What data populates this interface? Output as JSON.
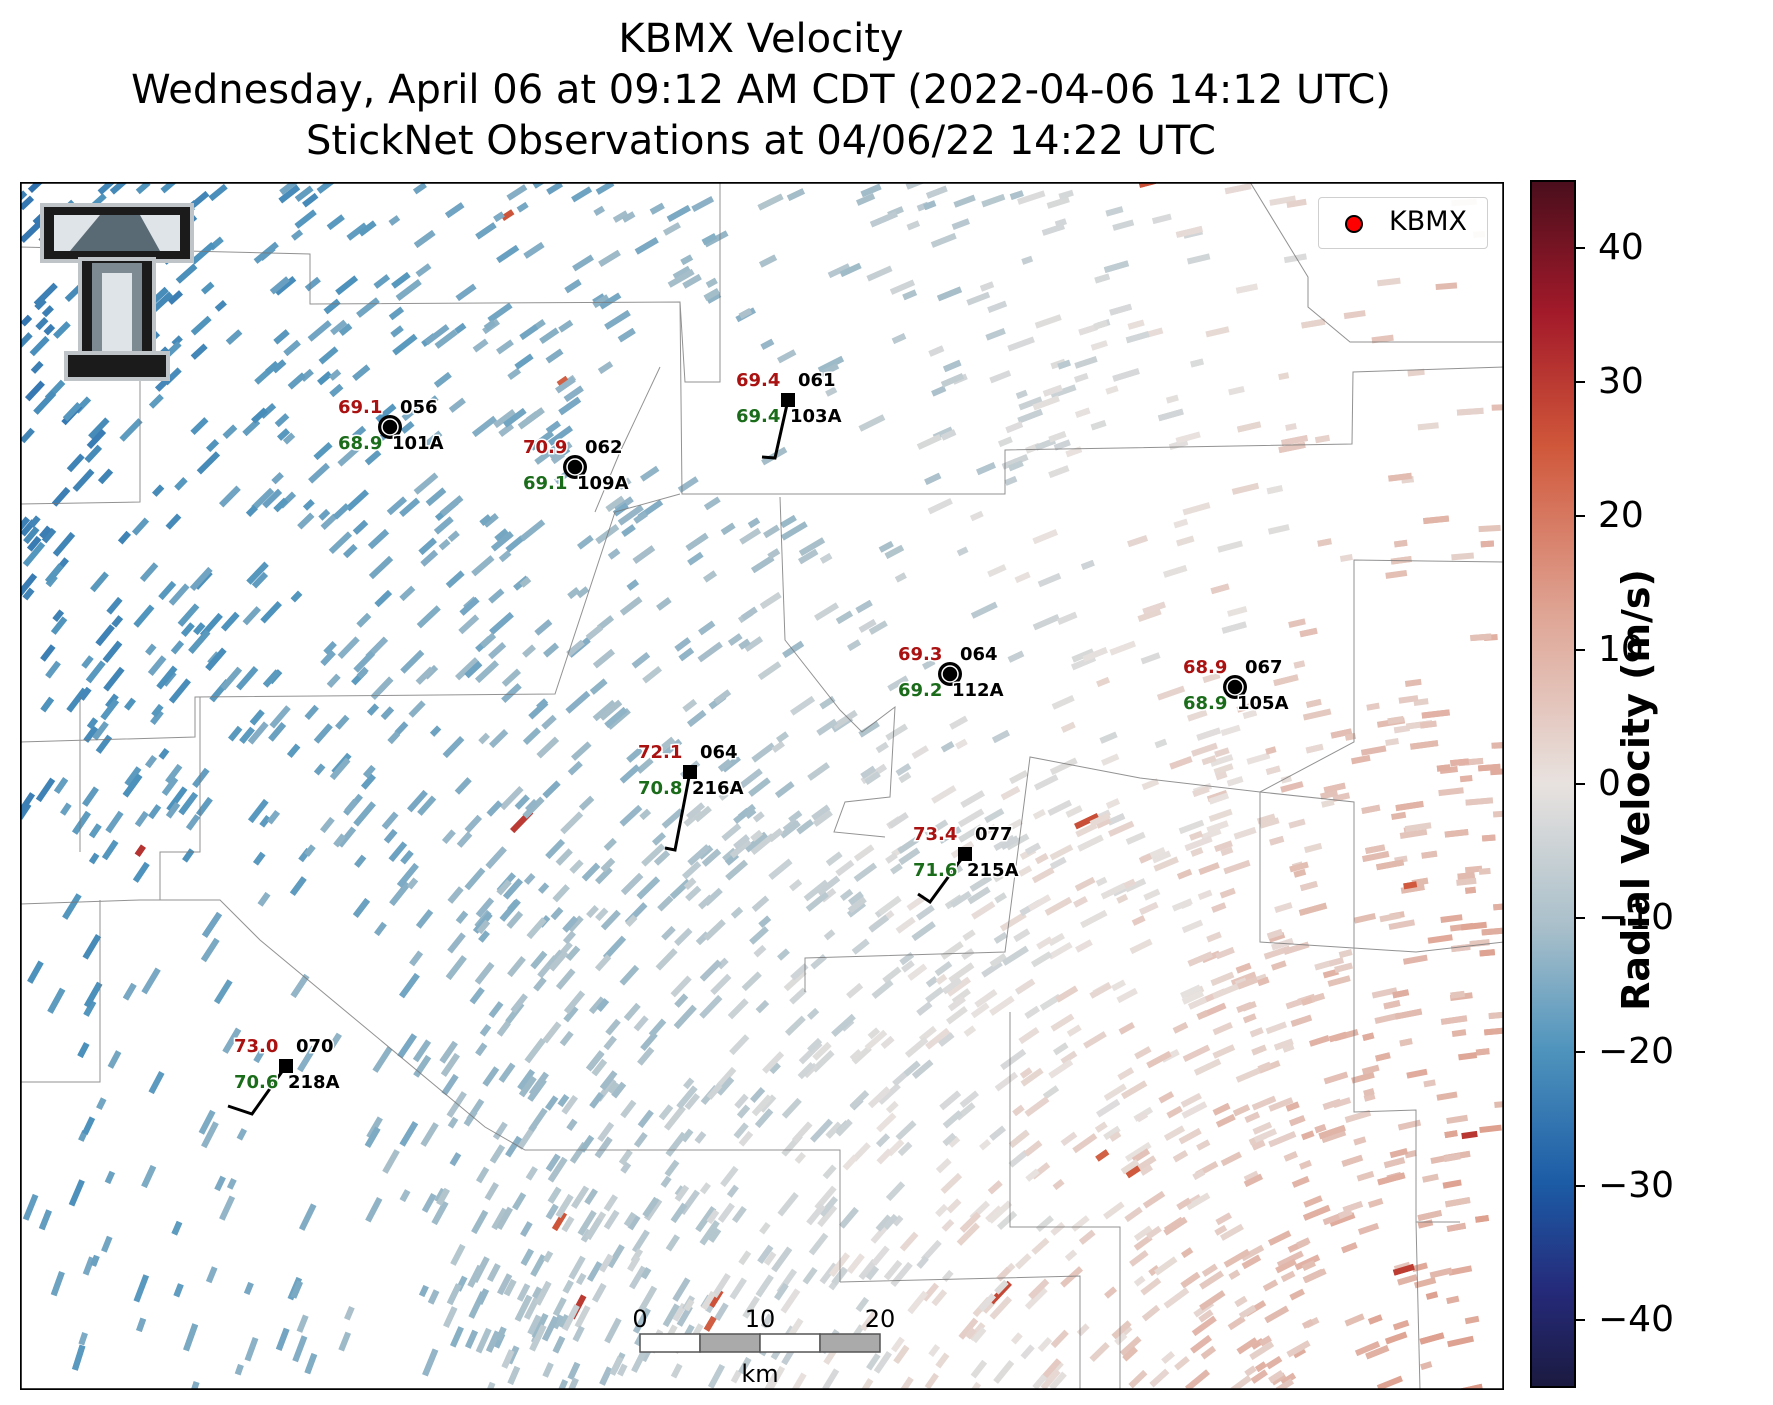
{
  "title": {
    "line1": "KBMX Velocity",
    "line2": "Wednesday, April 06 at 09:12 AM CDT (2022-04-06 14:12 UTC)",
    "line3": "StickNet Observations at 04/06/22 14:22 UTC"
  },
  "legend": {
    "label": "KBMX",
    "marker_color": "#ff0000"
  },
  "colorbar": {
    "label": "Radial Velocity (m/s)",
    "range": [
      -45,
      45
    ],
    "ticks": [
      "40",
      "30",
      "20",
      "10",
      "0",
      "−10",
      "−20",
      "−30",
      "−40"
    ],
    "tick_values": [
      40,
      30,
      20,
      10,
      0,
      -10,
      -20,
      -30,
      -40
    ],
    "colors": [
      "#4a0e1c",
      "#a31a2a",
      "#d0573a",
      "#dfa595",
      "#e8e2df",
      "#a8bfca",
      "#4f94bd",
      "#1c5ca6",
      "#252a7a",
      "#1b1a40"
    ]
  },
  "scale_bar": {
    "labels": [
      "0",
      "10",
      "20"
    ],
    "unit": "km"
  },
  "stations": [
    {
      "id": "056",
      "sub": "101A",
      "temp": "69.1",
      "dew": "68.9",
      "marker": "calm"
    },
    {
      "id": "062",
      "sub": "109A",
      "temp": "70.9",
      "dew": "69.1",
      "marker": "calm"
    },
    {
      "id": "061",
      "sub": "103A",
      "temp": "69.4",
      "dew": "69.4",
      "marker": "barb"
    },
    {
      "id": "064",
      "sub": "112A",
      "temp": "69.3",
      "dew": "69.2",
      "marker": "calm"
    },
    {
      "id": "067",
      "sub": "105A",
      "temp": "68.9",
      "dew": "68.9",
      "marker": "calm"
    },
    {
      "id": "064",
      "sub": "216A",
      "temp": "72.1",
      "dew": "70.8",
      "marker": "barb"
    },
    {
      "id": "077",
      "sub": "215A",
      "temp": "73.4",
      "dew": "71.6",
      "marker": "barb"
    },
    {
      "id": "070",
      "sub": "218A",
      "temp": "73.0",
      "dew": "70.6",
      "marker": "barb"
    }
  ],
  "text_colors": {
    "temp": "#aa1111",
    "dew": "#1a6b1a",
    "id": "#000000"
  }
}
